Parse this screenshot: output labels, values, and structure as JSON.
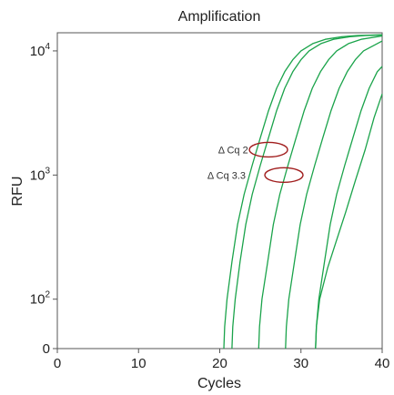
{
  "chart_data": {
    "type": "line",
    "title": "Amplification",
    "xlabel": "Cycles",
    "ylabel": "RFU",
    "xlim": [
      0,
      40
    ],
    "yscale": "log",
    "ylim": [
      40,
      14000
    ],
    "grid": false,
    "x_ticks": [
      {
        "value": 0,
        "label": "0"
      },
      {
        "value": 10,
        "label": "10"
      },
      {
        "value": 20,
        "label": "20"
      },
      {
        "value": 30,
        "label": "30"
      },
      {
        "value": 40,
        "label": "40"
      }
    ],
    "y_ticks": [
      {
        "value": 40,
        "base": "0",
        "exp": ""
      },
      {
        "value": 100,
        "base": "10",
        "exp": "2"
      },
      {
        "value": 1000,
        "base": "10",
        "exp": "3"
      },
      {
        "value": 10000,
        "base": "10",
        "exp": "4"
      }
    ],
    "series_color": "#1aa34a",
    "annotation_color": "#a01c1c",
    "series": [
      {
        "x": [
          20.5,
          20.6,
          20.9,
          21.5,
          22.2,
          23.0,
          24.0,
          25.0,
          26.0,
          27.0,
          28.0,
          29.0,
          30.0,
          31.5,
          33.0,
          35.0,
          37.0,
          38.5,
          40.0
        ],
        "y": [
          40,
          60,
          100,
          200,
          400,
          700,
          1200,
          2000,
          3300,
          5000,
          6800,
          8500,
          10000,
          11500,
          12400,
          13000,
          13300,
          13400,
          13500
        ]
      },
      {
        "x": [
          21.5,
          21.6,
          21.9,
          22.5,
          23.2,
          24.0,
          25.0,
          26.0,
          27.0,
          28.0,
          29.0,
          30.0,
          31.0,
          32.5,
          34.0,
          36.0,
          38.0,
          40.0
        ],
        "y": [
          40,
          60,
          100,
          200,
          400,
          700,
          1200,
          2000,
          3300,
          5000,
          6800,
          8500,
          10000,
          11500,
          12400,
          13000,
          13300,
          13400
        ]
      },
      {
        "x": [
          24.8,
          24.9,
          25.2,
          25.9,
          26.6,
          27.4,
          28.4,
          29.4,
          30.4,
          31.4,
          32.4,
          33.4,
          34.4,
          35.9,
          37.4,
          40.0
        ],
        "y": [
          40,
          60,
          100,
          200,
          400,
          700,
          1200,
          2000,
          3300,
          5000,
          6800,
          8500,
          10000,
          11500,
          12400,
          13200
        ]
      },
      {
        "x": [
          28.1,
          28.2,
          28.5,
          29.2,
          29.9,
          30.7,
          31.7,
          32.7,
          33.7,
          34.7,
          35.7,
          36.7,
          37.7,
          40.0
        ],
        "y": [
          40,
          60,
          100,
          200,
          400,
          700,
          1200,
          2000,
          3300,
          5000,
          6800,
          8500,
          10000,
          12000
        ]
      },
      {
        "x": [
          31.8,
          31.9,
          32.2,
          32.9,
          33.6,
          34.4,
          35.4,
          36.4,
          37.4,
          38.4,
          39.4,
          40.0
        ],
        "y": [
          40,
          60,
          100,
          200,
          400,
          700,
          1200,
          2000,
          3300,
          5000,
          6800,
          7500
        ]
      },
      {
        "x": [
          31.8,
          31.9,
          32.3,
          33.3,
          34.4,
          35.5,
          36.7,
          37.9,
          39.0,
          40.0
        ],
        "y": [
          40,
          60,
          100,
          180,
          300,
          500,
          900,
          1600,
          2900,
          4500
        ]
      }
    ],
    "annotations": [
      {
        "text": "Δ Cq 2",
        "x": 26.0,
        "y": 1600,
        "label_x": 23.5
      },
      {
        "text": "Δ Cq 3.3",
        "x": 27.9,
        "y": 1000,
        "label_x": 23.2
      }
    ]
  }
}
